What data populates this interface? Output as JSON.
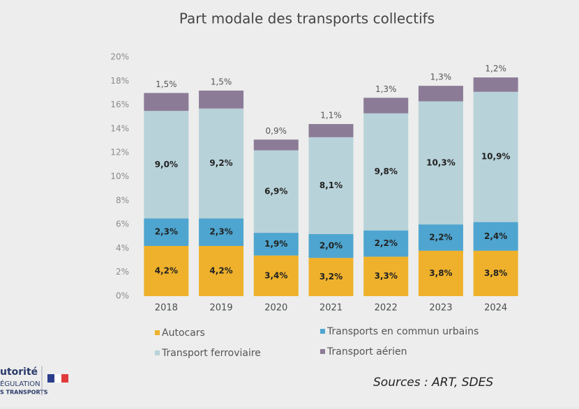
{
  "chart_data": {
    "type": "stacked-bar",
    "title": "Part modale des transports collectifs",
    "categories": [
      "2018",
      "2019",
      "2020",
      "2021",
      "2022",
      "2023",
      "2024"
    ],
    "series": [
      {
        "name": "Autocars",
        "color": "#efb12c",
        "values": [
          4.2,
          4.2,
          3.4,
          3.2,
          3.3,
          3.8,
          3.8
        ],
        "value_labels": [
          "4,2%",
          "4,2%",
          "3,4%",
          "3,2%",
          "3,3%",
          "3,8%",
          "3,8%"
        ]
      },
      {
        "name": "Transports en commun urbains",
        "color": "#4ea5cf",
        "values": [
          2.3,
          2.3,
          1.9,
          2.0,
          2.2,
          2.2,
          2.4
        ],
        "value_labels": [
          "2,3%",
          "2,3%",
          "1,9%",
          "2,0%",
          "2,2%",
          "2,2%",
          "2,4%"
        ]
      },
      {
        "name": "Transport ferroviaire",
        "color": "#b8d2d9",
        "values": [
          9.0,
          9.2,
          6.9,
          8.1,
          9.8,
          10.3,
          10.9
        ],
        "value_labels": [
          "9,0%",
          "9,2%",
          "6,9%",
          "8,1%",
          "9,8%",
          "10,3%",
          "10,9%"
        ]
      },
      {
        "name": "Transport aérien",
        "color": "#8c7b97",
        "values": [
          1.5,
          1.5,
          0.9,
          1.1,
          1.3,
          1.3,
          1.2
        ],
        "value_labels": [
          "1,5%",
          "1,5%",
          "0,9%",
          "1,1%",
          "1,3%",
          "1,3%",
          "1,2%"
        ]
      }
    ],
    "ylim": [
      0,
      20
    ],
    "yticks": [
      {
        "value": 0,
        "label": "0%"
      },
      {
        "value": 2,
        "label": "2%"
      },
      {
        "value": 4,
        "label": "4%"
      },
      {
        "value": 6,
        "label": "6%"
      },
      {
        "value": 8,
        "label": "8%"
      },
      {
        "value": 10,
        "label": "10%"
      },
      {
        "value": 12,
        "label": "12%"
      },
      {
        "value": 14,
        "label": "14%"
      },
      {
        "value": 16,
        "label": "16%"
      },
      {
        "value": 18,
        "label": "18%"
      },
      {
        "value": 20,
        "label": "20%"
      }
    ],
    "grid": false,
    "source": "Sources : ART, SDES",
    "logo": [
      "utorité",
      "ÉGULATION",
      "S TRANSPORTS"
    ]
  }
}
